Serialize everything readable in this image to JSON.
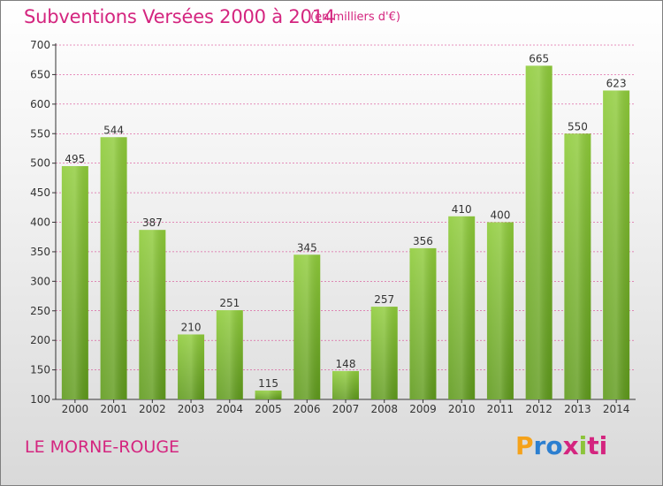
{
  "title": "Subventions Versées 2000 à 2014",
  "subtitle": "(en milliers d'€)",
  "commune": "LE MORNE-ROUGE",
  "logo": {
    "text": "Proxiti",
    "letters": [
      "P",
      "r",
      "o",
      "x",
      "i",
      "ti"
    ]
  },
  "chart_data": {
    "type": "bar",
    "categories": [
      "2000",
      "2001",
      "2002",
      "2003",
      "2004",
      "2005",
      "2006",
      "2007",
      "2008",
      "2009",
      "2010",
      "2011",
      "2012",
      "2013",
      "2014"
    ],
    "values": [
      495,
      544,
      387,
      210,
      251,
      115,
      345,
      148,
      257,
      356,
      410,
      400,
      665,
      550,
      623
    ],
    "title": "Subventions Versées 2000 à 2014",
    "subtitle": "(en milliers d'€)",
    "xlabel": "",
    "ylabel": "",
    "ylim": [
      100,
      700
    ],
    "yticks": [
      100,
      150,
      200,
      250,
      300,
      350,
      400,
      450,
      500,
      550,
      600,
      650,
      700
    ],
    "grid": true,
    "bar_color": "#7ab829",
    "grid_color": "#d4257f"
  }
}
